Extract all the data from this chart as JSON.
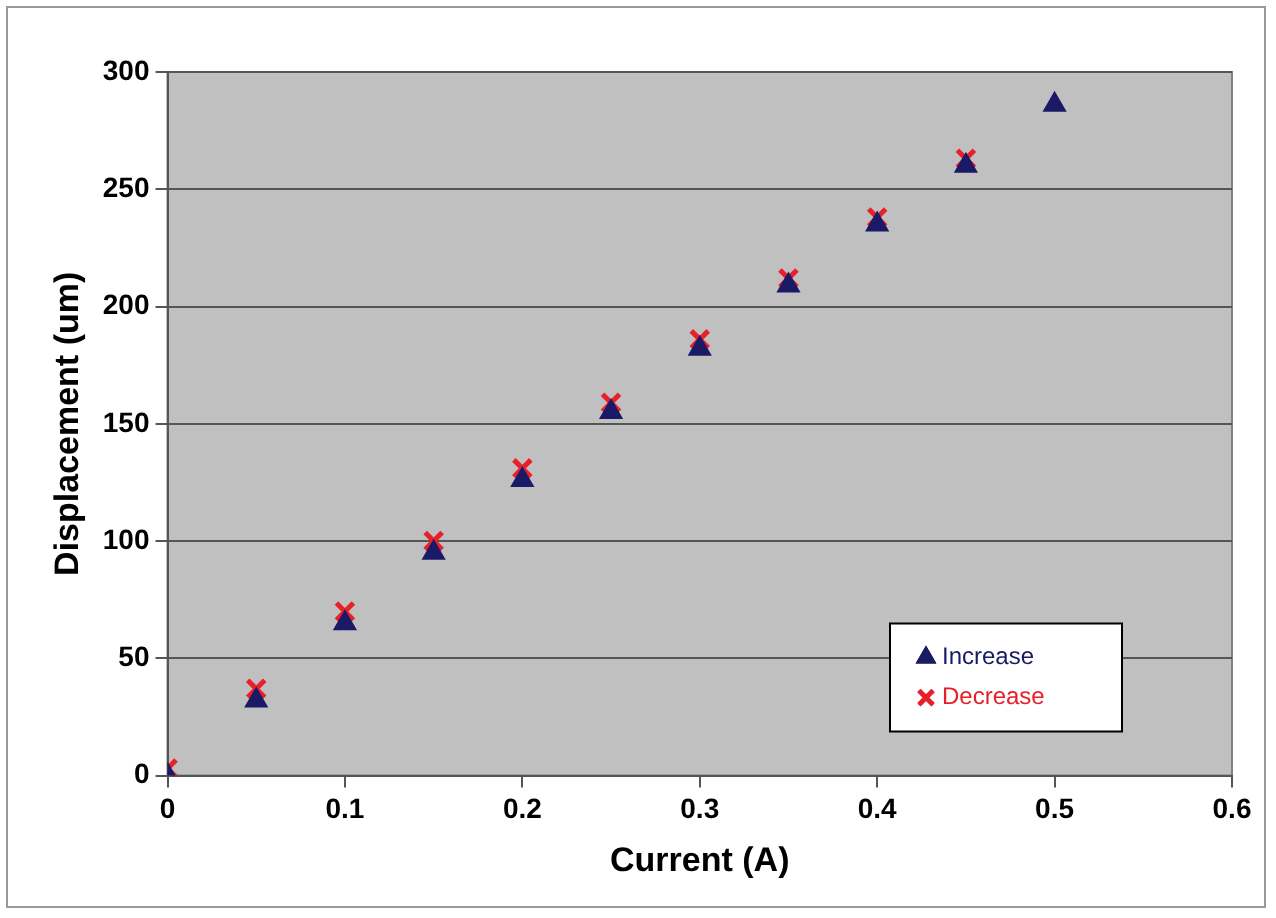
{
  "chart_data": {
    "type": "scatter",
    "xlabel": "Current (A)",
    "ylabel": "Displacement (um)",
    "x": [
      0,
      0.05,
      0.1,
      0.15,
      0.2,
      0.25,
      0.3,
      0.35,
      0.4,
      0.45,
      0.5
    ],
    "series": [
      {
        "name": "Increase",
        "color": "#1a1a66",
        "marker": "triangle",
        "values": [
          0,
          32,
          65,
          95,
          126,
          155,
          182,
          209,
          235,
          260,
          286
        ]
      },
      {
        "name": "Decrease",
        "color": "#e8202a",
        "marker": "cross",
        "values": [
          3,
          37,
          70,
          100,
          131,
          159,
          186,
          212,
          238,
          263,
          null
        ]
      }
    ],
    "xlim": [
      0,
      0.6
    ],
    "xticks": [
      0,
      0.1,
      0.2,
      0.3,
      0.4,
      0.5,
      0.6
    ],
    "ylim": [
      0,
      300
    ],
    "yticks": [
      0,
      50,
      100,
      150,
      200,
      250,
      300
    ],
    "grid": "y",
    "legend": "bottom right"
  }
}
